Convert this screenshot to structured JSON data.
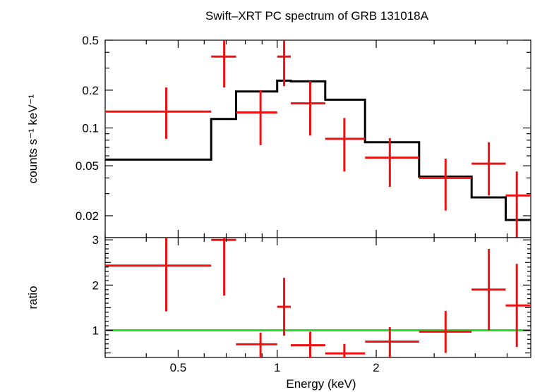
{
  "title": "Swift–XRT PC spectrum of GRB 131018A",
  "xlabel": "Energy (keV)",
  "chart_data": [
    {
      "type": "scatter",
      "panel": "spectrum",
      "title": "Swift–XRT PC spectrum of GRB 131018A",
      "ylabel": "counts s⁻¹ keV⁻¹",
      "xscale": "log",
      "yscale": "log",
      "xlim": [
        0.3,
        5.9
      ],
      "ylim": [
        0.0134,
        0.5
      ],
      "xticks": [
        {
          "v": 0.5,
          "label": "0.5"
        },
        {
          "v": 1,
          "label": "1"
        },
        {
          "v": 2,
          "label": "2"
        }
      ],
      "yticks": [
        {
          "v": 0.02,
          "label": "0.02"
        },
        {
          "v": 0.05,
          "label": "0.05"
        },
        {
          "v": 0.1,
          "label": "0.1"
        },
        {
          "v": 0.2,
          "label": "0.2"
        },
        {
          "v": 0.5,
          "label": "0.5"
        }
      ],
      "data_color": "#ee1111",
      "model_color": "#000000",
      "series": [
        {
          "kind": "data",
          "points": [
            {
              "x": 0.46,
              "xlo": 0.3,
              "xhi": 0.63,
              "y": 0.135,
              "ylo": 0.082,
              "yhi": 0.21
            },
            {
              "x": 0.69,
              "xlo": 0.63,
              "xhi": 0.75,
              "y": 0.37,
              "ylo": 0.21,
              "yhi": 0.52
            },
            {
              "x": 0.89,
              "xlo": 0.75,
              "xhi": 1.0,
              "y": 0.133,
              "ylo": 0.073,
              "yhi": 0.2
            },
            {
              "x": 1.05,
              "xlo": 1.0,
              "xhi": 1.1,
              "y": 0.37,
              "ylo": 0.215,
              "yhi": 0.52
            },
            {
              "x": 1.26,
              "xlo": 1.1,
              "xhi": 1.4,
              "y": 0.157,
              "ylo": 0.087,
              "yhi": 0.235
            },
            {
              "x": 1.6,
              "xlo": 1.4,
              "xhi": 1.85,
              "y": 0.082,
              "ylo": 0.045,
              "yhi": 0.12
            },
            {
              "x": 2.2,
              "xlo": 1.85,
              "xhi": 2.7,
              "y": 0.058,
              "ylo": 0.034,
              "yhi": 0.083
            },
            {
              "x": 3.25,
              "xlo": 2.7,
              "xhi": 3.9,
              "y": 0.04,
              "ylo": 0.022,
              "yhi": 0.057
            },
            {
              "x": 4.4,
              "xlo": 3.9,
              "xhi": 4.95,
              "y": 0.052,
              "ylo": 0.029,
              "yhi": 0.077
            },
            {
              "x": 5.35,
              "xlo": 4.95,
              "xhi": 5.9,
              "y": 0.029,
              "ylo": 0.0134,
              "yhi": 0.045
            }
          ]
        },
        {
          "kind": "model",
          "steps": [
            {
              "xlo": 0.3,
              "xhi": 0.63,
              "y": 0.056
            },
            {
              "xlo": 0.63,
              "xhi": 0.75,
              "y": 0.118
            },
            {
              "xlo": 0.75,
              "xhi": 1.0,
              "y": 0.195
            },
            {
              "xlo": 1.0,
              "xhi": 1.1,
              "y": 0.238
            },
            {
              "xlo": 1.1,
              "xhi": 1.4,
              "y": 0.235
            },
            {
              "xlo": 1.4,
              "xhi": 1.85,
              "y": 0.168
            },
            {
              "xlo": 1.85,
              "xhi": 2.7,
              "y": 0.077
            },
            {
              "xlo": 2.7,
              "xhi": 3.9,
              "y": 0.041
            },
            {
              "xlo": 3.9,
              "xhi": 4.95,
              "y": 0.028
            },
            {
              "xlo": 4.95,
              "xhi": 5.9,
              "y": 0.0185
            }
          ]
        }
      ]
    },
    {
      "type": "scatter",
      "panel": "ratio",
      "ylabel": "ratio",
      "xscale": "log",
      "yscale": "linear",
      "xlim": [
        0.3,
        5.9
      ],
      "ylim": [
        0.4,
        3.05
      ],
      "xticks": [
        {
          "v": 0.5,
          "label": "0.5"
        },
        {
          "v": 1,
          "label": "1"
        },
        {
          "v": 2,
          "label": "2"
        }
      ],
      "yticks": [
        {
          "v": 1,
          "label": "1"
        },
        {
          "v": 2,
          "label": "2"
        },
        {
          "v": 3,
          "label": "3"
        }
      ],
      "data_color": "#ee1111",
      "reference_line": {
        "y": 1,
        "color": "#22dd22"
      },
      "series": [
        {
          "kind": "data",
          "points": [
            {
              "x": 0.46,
              "xlo": 0.3,
              "xhi": 0.63,
              "y": 2.43,
              "ylo": 1.42,
              "yhi": 3.05
            },
            {
              "x": 0.69,
              "xlo": 0.63,
              "xhi": 0.75,
              "y": 3.0,
              "ylo": 1.77,
              "yhi": 3.05
            },
            {
              "x": 0.89,
              "xlo": 0.75,
              "xhi": 1.0,
              "y": 0.69,
              "ylo": 0.4,
              "yhi": 0.95
            },
            {
              "x": 1.05,
              "xlo": 1.0,
              "xhi": 1.1,
              "y": 1.52,
              "ylo": 0.88,
              "yhi": 2.16
            },
            {
              "x": 1.26,
              "xlo": 1.1,
              "xhi": 1.4,
              "y": 0.67,
              "ylo": 0.4,
              "yhi": 0.97
            },
            {
              "x": 1.6,
              "xlo": 1.4,
              "xhi": 1.85,
              "y": 0.49,
              "ylo": 0.4,
              "yhi": 0.7
            },
            {
              "x": 2.2,
              "xlo": 1.85,
              "xhi": 2.7,
              "y": 0.75,
              "ylo": 0.4,
              "yhi": 1.07
            },
            {
              "x": 3.25,
              "xlo": 2.7,
              "xhi": 3.9,
              "y": 0.97,
              "ylo": 0.5,
              "yhi": 1.43
            },
            {
              "x": 4.4,
              "xlo": 3.9,
              "xhi": 4.95,
              "y": 1.9,
              "ylo": 1.0,
              "yhi": 2.8
            },
            {
              "x": 5.35,
              "xlo": 4.95,
              "xhi": 5.9,
              "y": 1.55,
              "ylo": 0.63,
              "yhi": 2.47
            }
          ]
        }
      ]
    }
  ]
}
